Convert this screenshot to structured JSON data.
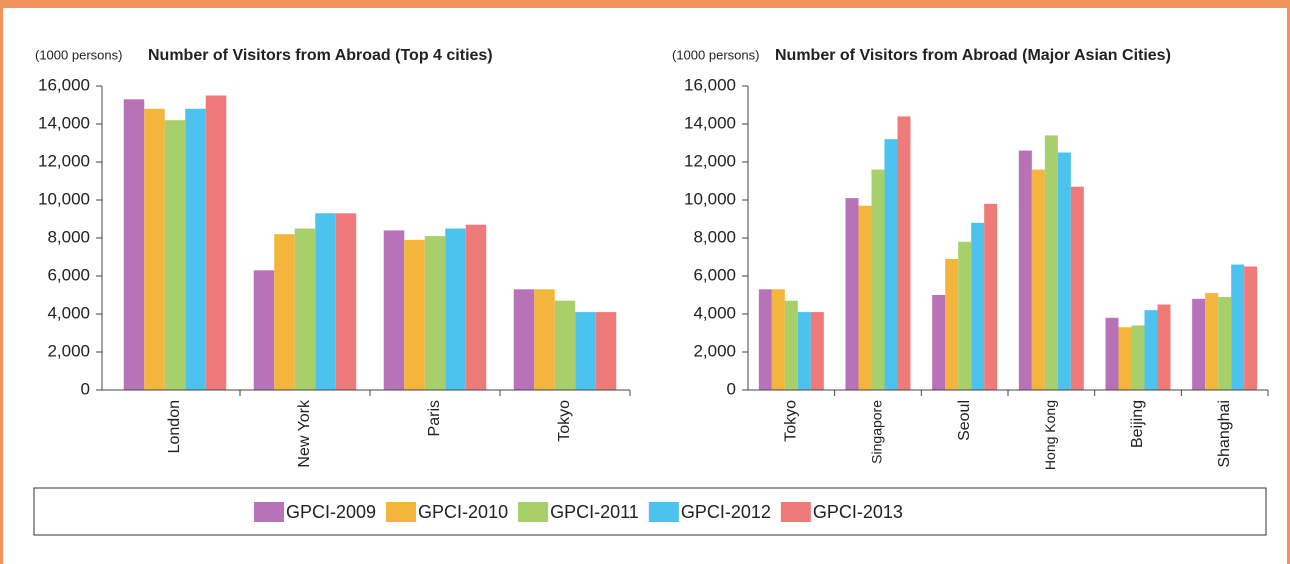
{
  "chart_data": [
    {
      "type": "bar",
      "title": "Number of Visitors from Abroad (Top 4 cities)",
      "unit_label": "(1000 persons)",
      "categories": [
        "London",
        "New York",
        "Paris",
        "Tokyo"
      ],
      "series": [
        {
          "name": "GPCI-2009",
          "color": "#b872b8",
          "values": [
            15300,
            6300,
            8400,
            5300
          ]
        },
        {
          "name": "GPCI-2010",
          "color": "#f3b53c",
          "values": [
            14800,
            8200,
            7900,
            5300
          ]
        },
        {
          "name": "GPCI-2011",
          "color": "#a8d06a",
          "values": [
            14200,
            8500,
            8100,
            4700
          ]
        },
        {
          "name": "GPCI-2012",
          "color": "#4cc2ee",
          "values": [
            14800,
            9300,
            8500,
            4100
          ]
        },
        {
          "name": "GPCI-2013",
          "color": "#ef7a7a",
          "values": [
            15500,
            9300,
            8700,
            4100
          ]
        }
      ],
      "ylim": [
        0,
        16000
      ],
      "yticks": [
        0,
        {
          "value": 2000,
          "label": "2,000"
        },
        {
          "value": 4000,
          "label": "4,000"
        },
        {
          "value": 6000,
          "label": "6,000"
        },
        {
          "value": 8000,
          "label": "8,000"
        },
        {
          "value": 10000,
          "label": "10,000"
        },
        {
          "value": 12000,
          "label": "12,000"
        },
        {
          "value": 14000,
          "label": "14,000"
        },
        {
          "value": 16000,
          "label": "16,000"
        }
      ]
    },
    {
      "type": "bar",
      "title": "Number of Visitors from Abroad (Major Asian Cities)",
      "unit_label": "(1000 persons)",
      "categories": [
        "Tokyo",
        "Singapore",
        "Seoul",
        "Hong Kong",
        "Beijing",
        "Shanghai"
      ],
      "series": [
        {
          "values": [
            5300,
            10100,
            5000,
            12600,
            3800,
            4800
          ]
        },
        {
          "values": [
            5300,
            9700,
            6900,
            11600,
            3300,
            5100
          ]
        },
        {
          "values": [
            4700,
            11600,
            7800,
            13400,
            3400,
            4900
          ]
        },
        {
          "values": [
            4100,
            13200,
            8800,
            12500,
            4200,
            6600
          ]
        },
        {
          "values": [
            4100,
            14400,
            9800,
            10700,
            4500,
            6500
          ]
        }
      ],
      "ylim": [
        0,
        16000
      ],
      "yticks": [
        0,
        {
          "value": 2000,
          "label": "2,000"
        },
        {
          "value": 4000,
          "label": "4,000"
        },
        {
          "value": 6000,
          "label": "6,000"
        },
        {
          "value": 8000,
          "label": "8,000"
        },
        {
          "value": 10000,
          "label": "10,000"
        },
        {
          "value": 12000,
          "label": "12,000"
        },
        {
          "value": 14000,
          "label": "14,000"
        },
        {
          "value": 16000,
          "label": "16,000"
        }
      ]
    }
  ]
}
